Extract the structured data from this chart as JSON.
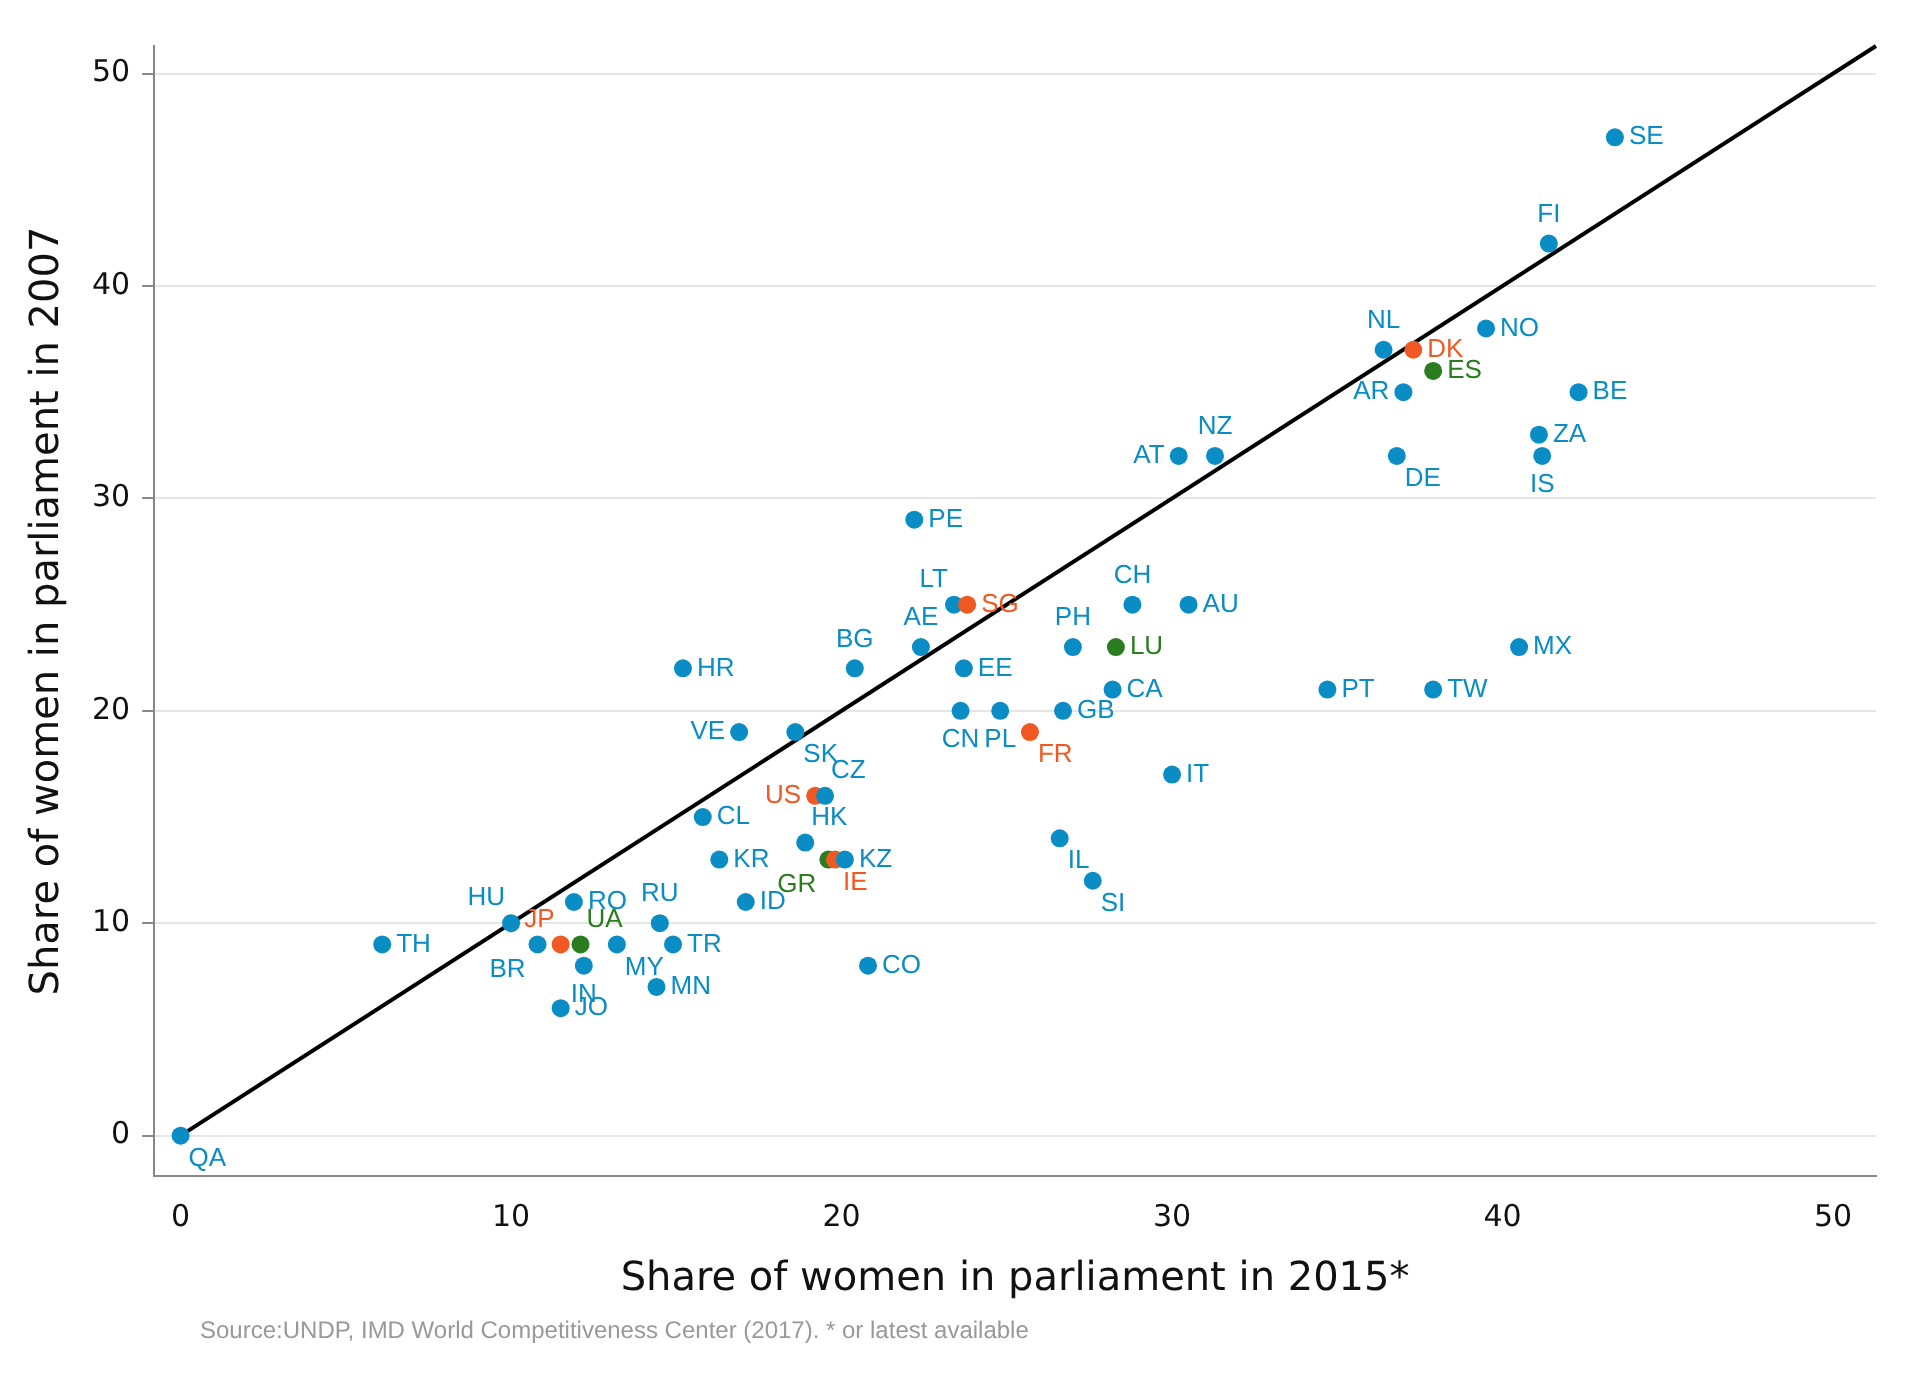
{
  "chart_data": {
    "type": "scatter",
    "xlabel": "Share of women in parliament in 2015*",
    "ylabel": "Share of women in parliament in 2007",
    "annotations": [
      "Source:UNDP, IMD World Competitiveness Center (2017). * or latest available"
    ],
    "xlim": [
      -0.8,
      51.3
    ],
    "ylim": [
      -1.9,
      51.3
    ],
    "xticks": [
      0,
      10,
      20,
      30,
      40,
      50
    ],
    "yticks": [
      0,
      10,
      20,
      30,
      40,
      50
    ],
    "grid": "y",
    "marker": "circle",
    "series": [
      {
        "x": [
          0,
          6.1,
          10,
          10.8,
          11.5,
          12.1,
          11.9,
          12.2,
          11.5,
          13.2,
          14.5,
          14.9,
          14.4,
          17.1,
          15.8,
          16.3,
          20.8,
          18.9,
          19.6,
          19.8,
          20.1,
          19.2,
          19.5,
          15.2,
          16.9,
          18.6,
          20.4,
          22.2,
          22.4,
          23.4,
          23.8,
          28.8,
          30.5,
          27,
          28.3,
          23.7,
          40.5,
          28.2,
          34.7,
          37.9,
          23.6,
          24.8,
          26.7,
          25.7,
          30,
          26.6,
          27.6,
          43.4,
          41.4,
          36.4,
          37.3,
          39.5,
          37.9,
          37,
          42.3,
          41.1,
          41.2,
          36.8,
          30.2,
          31.3
        ],
        "values": [
          0,
          9,
          10,
          9,
          9,
          9,
          11,
          8,
          6,
          9,
          10,
          9,
          7,
          11,
          15,
          13,
          8,
          13.8,
          13,
          13,
          13,
          16,
          16,
          22,
          19,
          19,
          22,
          29,
          23,
          25,
          25,
          25,
          25,
          23,
          23,
          22,
          23,
          21,
          21,
          21,
          20,
          20,
          20,
          19,
          17,
          14,
          12,
          47,
          42,
          37,
          37,
          38,
          36,
          35,
          35,
          33,
          32,
          32,
          32,
          32
        ],
        "value_labels": [
          "QA",
          "TH",
          "HU",
          "BR",
          "JP",
          "UA",
          "RO",
          "IN",
          "JO",
          "MY",
          "RU",
          "TR",
          "MN",
          "ID",
          "CL",
          "KR",
          "CO",
          "HK",
          "GR",
          "IE",
          "KZ",
          "US",
          "CZ",
          "HR",
          "VE",
          "SK",
          "BG",
          "PE",
          "AE",
          "LT",
          "SG",
          "CH",
          "AU",
          "PH",
          "LU",
          "EE",
          "MX",
          "CA",
          "PT",
          "TW",
          "CN",
          "PL",
          "GB",
          "FR",
          "IT",
          "IL",
          "SI",
          "SE",
          "FI",
          "NL",
          "DK",
          "NO",
          "ES",
          "AR",
          "BE",
          "ZA",
          "IS",
          "DE",
          "AT",
          "NZ"
        ],
        "colors": [
          "#0a8cc4",
          "#0a8cc4",
          "#0a8cc4",
          "#0a8cc4",
          "#f05a22",
          "#2a7d1e",
          "#0a8cc4",
          "#0a8cc4",
          "#0a8cc4",
          "#0a8cc4",
          "#0a8cc4",
          "#0a8cc4",
          "#0a8cc4",
          "#0a8cc4",
          "#0a8cc4",
          "#0a8cc4",
          "#0a8cc4",
          "#0a8cc4",
          "#2a7d1e",
          "#f05a22",
          "#0a8cc4",
          "#f05a22",
          "#0a8cc4",
          "#0a8cc4",
          "#0a8cc4",
          "#0a8cc4",
          "#0a8cc4",
          "#0a8cc4",
          "#0a8cc4",
          "#0a8cc4",
          "#f05a22",
          "#0a8cc4",
          "#0a8cc4",
          "#0a8cc4",
          "#2a7d1e",
          "#0a8cc4",
          "#0a8cc4",
          "#0a8cc4",
          "#0a8cc4",
          "#0a8cc4",
          "#0a8cc4",
          "#0a8cc4",
          "#0a8cc4",
          "#f05a22",
          "#0a8cc4",
          "#0a8cc4",
          "#0a8cc4",
          "#0a8cc4",
          "#0a8cc4",
          "#0a8cc4",
          "#f05a22",
          "#0a8cc4",
          "#2a7d1e",
          "#0a8cc4",
          "#0a8cc4",
          "#0a8cc4",
          "#0a8cc4",
          "#0a8cc4",
          "#0a8cc4",
          "#0a8cc4"
        ]
      },
      {
        "type": "line",
        "x": [
          0,
          51.3
        ],
        "values": [
          0,
          51.3
        ],
        "color": "#000000",
        "marker": "none"
      }
    ]
  }
}
